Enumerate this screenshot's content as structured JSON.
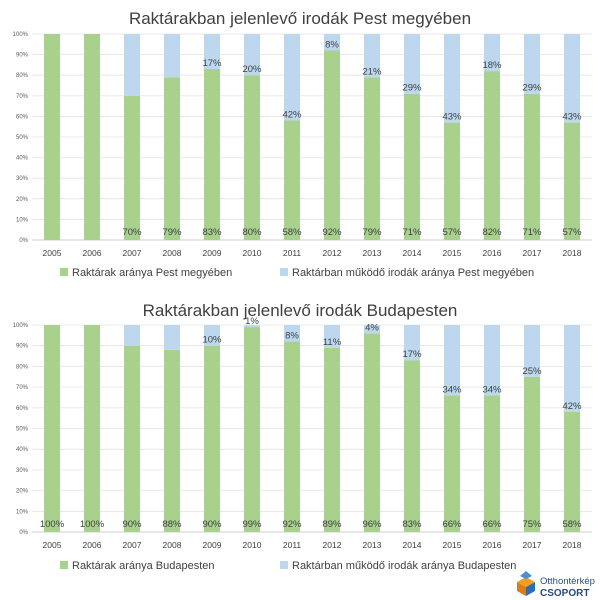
{
  "colors": {
    "green": "#a9d18e",
    "blue": "#bdd7ee",
    "grid": "#e4e4e4",
    "axis": "#bfbfbf"
  },
  "logo": {
    "line1": "Otthontérkép",
    "line2": "CSOPORT",
    "icon": "house-cube-icon"
  },
  "chart_data": [
    {
      "type": "bar",
      "stacked": true,
      "percent": true,
      "title": "Raktárakban jelenlevő irodák Pest megyében",
      "categories": [
        "2005",
        "2006",
        "2007",
        "2008",
        "2009",
        "2010",
        "2011",
        "2012",
        "2013",
        "2014",
        "2015",
        "2016",
        "2017",
        "2018"
      ],
      "yticks": [
        "0%",
        "10%",
        "20%",
        "30%",
        "40%",
        "50%",
        "60%",
        "70%",
        "80%",
        "90%",
        "100%"
      ],
      "ylim": [
        0,
        100
      ],
      "grid": true,
      "legend": "bottom",
      "series": [
        {
          "name": "Raktárak aránya Pest megyében",
          "values": [
            100,
            100,
            70,
            79,
            83,
            80,
            58,
            92,
            79,
            71,
            57,
            82,
            71,
            57
          ],
          "labels": [
            "",
            "",
            "70%",
            "79%",
            "83%",
            "80%",
            "58%",
            "92%",
            "79%",
            "71%",
            "57%",
            "82%",
            "71%",
            "57%"
          ]
        },
        {
          "name": "Raktárban működő irodák aránya Pest megyében",
          "values": [
            0,
            0,
            30,
            21,
            17,
            20,
            42,
            8,
            21,
            29,
            43,
            18,
            29,
            43
          ],
          "labels": [
            "",
            "",
            "",
            "",
            "17%",
            "20%",
            "42%",
            "8%",
            "21%",
            "29%",
            "43%",
            "18%",
            "29%",
            "43%"
          ]
        }
      ]
    },
    {
      "type": "bar",
      "stacked": true,
      "percent": true,
      "title": "Raktárakban jelenlevő irodák Budapesten",
      "categories": [
        "2005",
        "2006",
        "2007",
        "2008",
        "2009",
        "2010",
        "2011",
        "2012",
        "2013",
        "2014",
        "2015",
        "2016",
        "2017",
        "2018"
      ],
      "yticks": [
        "0%",
        "10%",
        "20%",
        "30%",
        "40%",
        "50%",
        "60%",
        "70%",
        "80%",
        "90%",
        "100%"
      ],
      "ylim": [
        0,
        100
      ],
      "grid": true,
      "legend": "bottom",
      "series": [
        {
          "name": "Raktárak aránya Budapesten",
          "values": [
            100,
            100,
            90,
            88,
            90,
            99,
            92,
            89,
            96,
            83,
            66,
            66,
            75,
            58
          ],
          "labels": [
            "100%",
            "100%",
            "90%",
            "88%",
            "90%",
            "99%",
            "92%",
            "89%",
            "96%",
            "83%",
            "66%",
            "66%",
            "75%",
            "58%"
          ]
        },
        {
          "name": "Raktárban működő irodák aránya Budapesten",
          "values": [
            0,
            0,
            10,
            12,
            10,
            1,
            8,
            11,
            4,
            17,
            34,
            34,
            25,
            42
          ],
          "labels": [
            "",
            "",
            "",
            "",
            "10%",
            "1%",
            "8%",
            "11%",
            "4%",
            "17%",
            "34%",
            "34%",
            "25%",
            "42%"
          ]
        }
      ]
    }
  ]
}
